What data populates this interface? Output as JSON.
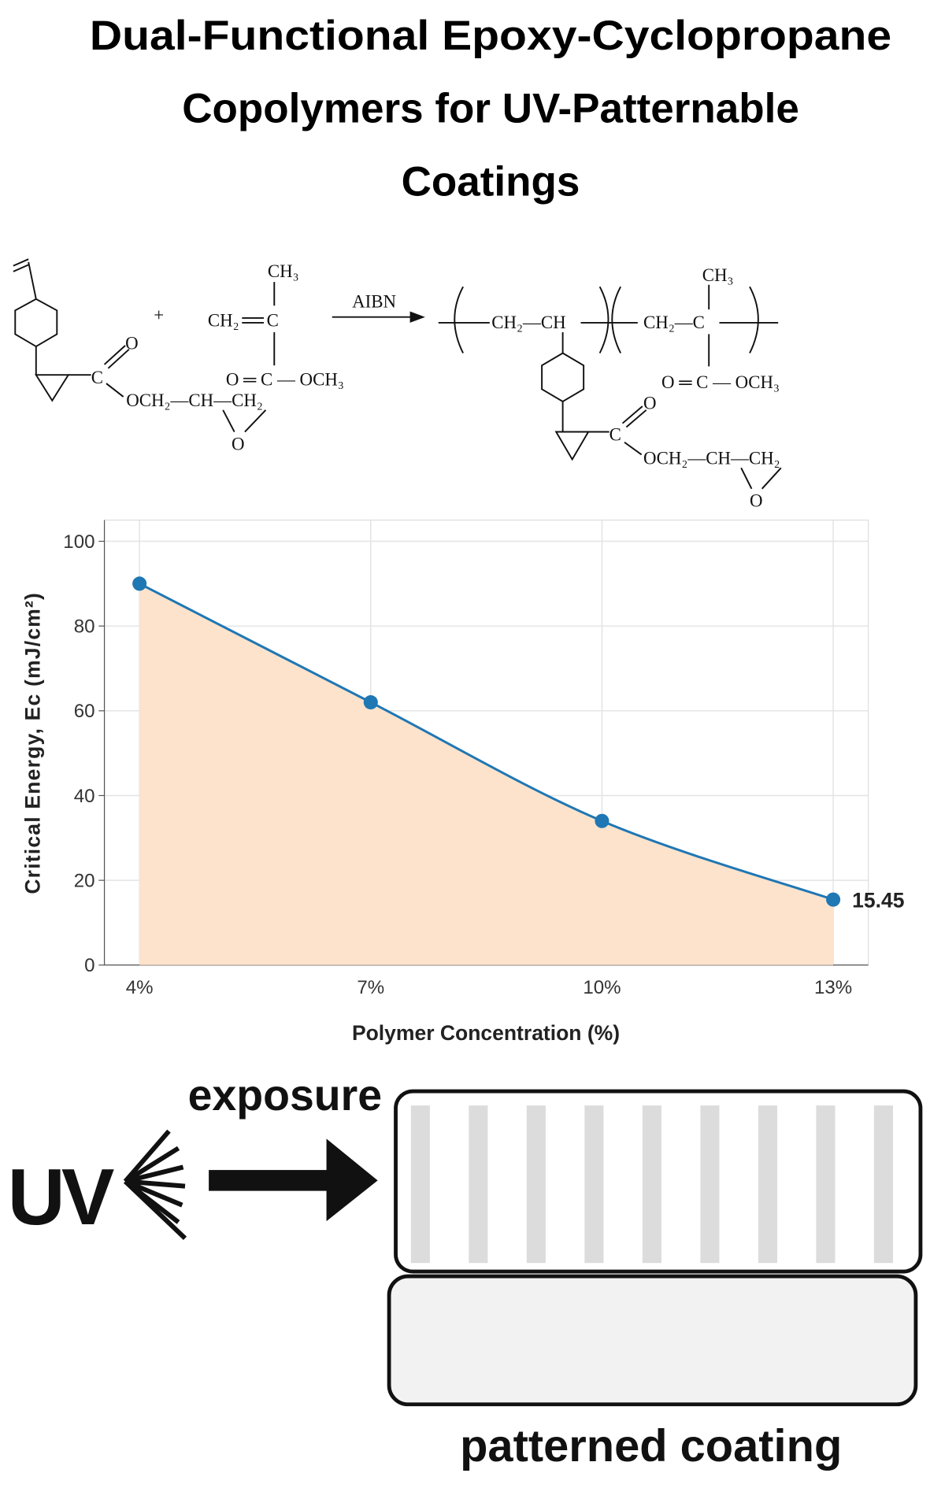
{
  "header": {
    "title_lines": [
      "Dual-Functional Epoxy-Cyclopropane",
      "Copolymers for UV-Patternable",
      "Coatings"
    ]
  },
  "scheme": {
    "labels": [
      "CH₃",
      "CH₂",
      "C",
      "O ═ C — OCH₃",
      "C",
      "O",
      "OCH₂—CH—CH₂",
      "O",
      "+",
      "AIBN",
      "CH₂—CH",
      "CH₂—C",
      "CH₃",
      "O ═ C — OCH₃",
      "C",
      "O",
      "OCH₂—CH—CH₂",
      "O"
    ]
  },
  "chart_data": {
    "type": "line",
    "x_label": "Polymer Concentration (%)",
    "y_label": "Critical Energy, Ec (mJ/cm²)",
    "categories": [
      "4%",
      "7%",
      "10%",
      "13%"
    ],
    "values": [
      90,
      62,
      34,
      15.45
    ],
    "color": "#1f77b4",
    "fill_color": "#fde3cc",
    "smooth": true,
    "label_last_point": true,
    "ylim": [
      0,
      105
    ],
    "yticks": [
      0,
      20,
      40,
      60,
      80,
      100
    ],
    "grid": true
  },
  "diagram": {
    "uv": "UV",
    "exposure": "exposure",
    "result": "patterned coating"
  }
}
